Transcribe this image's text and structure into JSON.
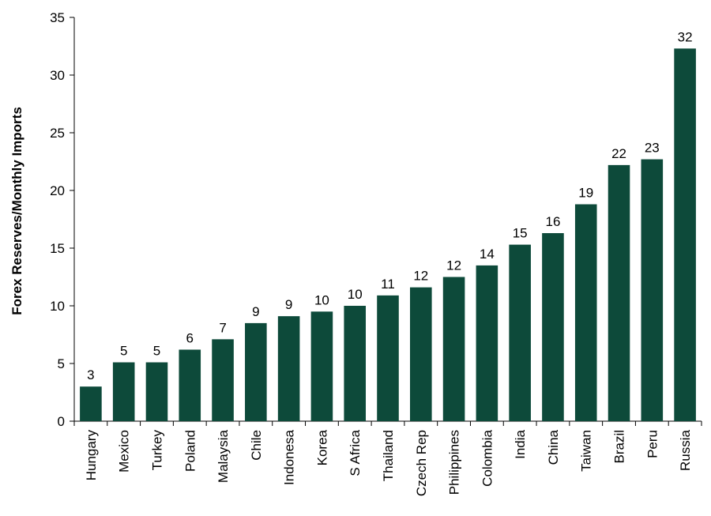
{
  "chart_data": {
    "type": "bar",
    "title": "",
    "xlabel": "",
    "ylabel": "Forex Reserves/Monthly Imports",
    "ylim": [
      0,
      35
    ],
    "yticks": [
      0,
      5,
      10,
      15,
      20,
      25,
      30,
      35
    ],
    "grid": false,
    "categories": [
      "Hungary",
      "Mexico",
      "Turkey",
      "Poland",
      "Malaysia",
      "Chile",
      "Indonesa",
      "Korea",
      "S Africa",
      "Thailand",
      "Czech Rep",
      "Philippines",
      "Colombia",
      "India",
      "China",
      "Taiwan",
      "Brazil",
      "Peru",
      "Russia"
    ],
    "values": [
      3.0,
      5.1,
      5.1,
      6.2,
      7.1,
      8.5,
      9.1,
      9.5,
      10.0,
      10.9,
      11.6,
      12.5,
      13.5,
      15.3,
      16.3,
      18.8,
      22.2,
      22.7,
      32.3
    ],
    "data_labels": [
      "3",
      "5",
      "5",
      "6",
      "7",
      "9",
      "9",
      "10",
      "10",
      "11",
      "12",
      "12",
      "14",
      "15",
      "16",
      "19",
      "22",
      "23",
      "32"
    ],
    "bar_color": "#0d4a3a"
  }
}
